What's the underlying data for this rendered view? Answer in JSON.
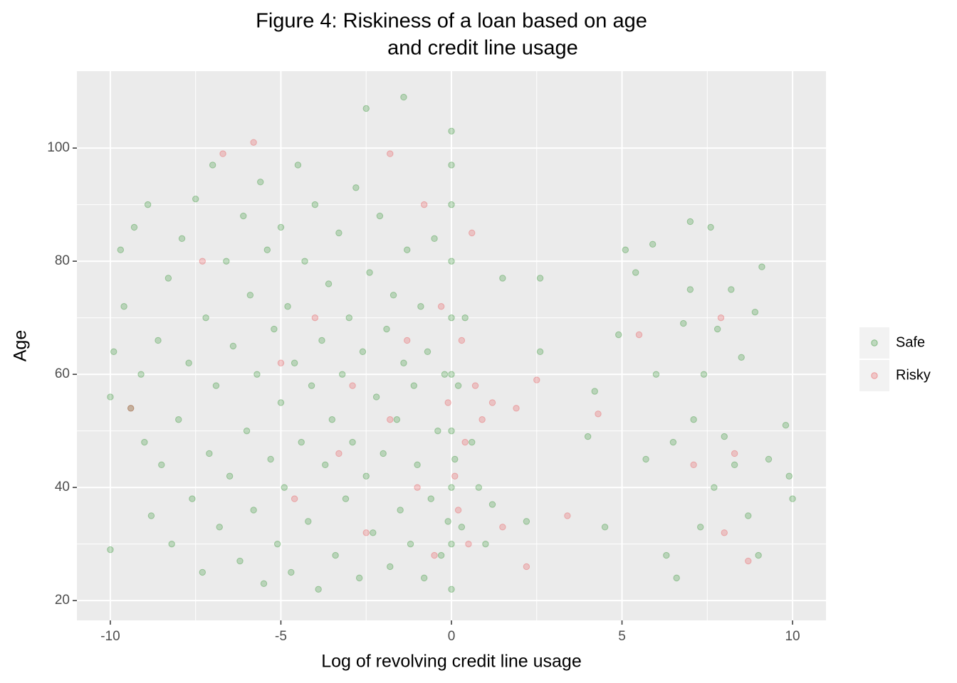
{
  "chart_data": {
    "type": "scatter",
    "title": [
      "Figure 4: Riskiness of a loan based on age",
      "and credit line usage"
    ],
    "x_label": "Log of revolving credit line usage",
    "y_label": "Age",
    "xlim": [
      -10.98,
      10.98
    ],
    "ylim": [
      16.5,
      113.6
    ],
    "xticks": [
      -10,
      -5,
      0,
      5,
      10
    ],
    "yticks": [
      20,
      40,
      60,
      80,
      100
    ],
    "x_minor_ticks": [
      -7.5,
      -2.5,
      2.5,
      7.5
    ],
    "y_minor_ticks": [
      30,
      50,
      70,
      90
    ],
    "grid": true,
    "legend_position": "right",
    "series": [
      {
        "name": "Safe",
        "color": "#228b22",
        "x": [
          -10,
          -10,
          -9.9,
          -9.7,
          -9.6,
          -9.4,
          -9.3,
          -9.1,
          -9,
          -8.9,
          -8.8,
          -8.6,
          -8.5,
          -8.3,
          -8.2,
          -8,
          -7.9,
          -7.7,
          -7.6,
          -7.5,
          -7.3,
          -7.2,
          -7.1,
          -7,
          -6.9,
          -6.8,
          -6.6,
          -6.5,
          -6.4,
          -6.2,
          -6.1,
          -6,
          -5.9,
          -5.8,
          -5.7,
          -5.6,
          -5.5,
          -5.4,
          -5.3,
          -5.2,
          -5.1,
          -5,
          -5,
          -4.9,
          -4.8,
          -4.7,
          -4.6,
          -4.5,
          -4.4,
          -4.3,
          -4.2,
          -4.1,
          -4,
          -3.9,
          -3.8,
          -3.7,
          -3.6,
          -3.5,
          -3.4,
          -3.3,
          -3.2,
          -3.1,
          -3,
          -2.9,
          -2.8,
          -2.7,
          -2.6,
          -2.5,
          -2.5,
          -2.4,
          -2.3,
          -2.2,
          -2.1,
          -2,
          -1.9,
          -1.8,
          -1.7,
          -1.6,
          -1.5,
          -1.4,
          -1.4,
          -1.3,
          -1.2,
          -1.1,
          -1,
          -0.9,
          -0.8,
          -0.7,
          -0.6,
          -0.5,
          -0.4,
          -0.3,
          -0.2,
          -0.1,
          0,
          0,
          0,
          0,
          0,
          0,
          0,
          0,
          0,
          0,
          0.1,
          0.2,
          0.3,
          0.4,
          0.6,
          0.8,
          1,
          1.2,
          1.5,
          2.2,
          2.6,
          2.6,
          4,
          4.2,
          4.5,
          4.9,
          5.1,
          5.4,
          5.7,
          5.9,
          6,
          6.3,
          6.5,
          6.6,
          6.8,
          7,
          7,
          7.1,
          7.3,
          7.4,
          7.6,
          7.7,
          7.8,
          8,
          8.2,
          8.3,
          8.5,
          8.7,
          8.9,
          9,
          9.1,
          9.3,
          9.8,
          9.9,
          10
        ],
        "values": [
          56,
          29,
          64,
          82,
          72,
          54,
          86,
          60,
          48,
          90,
          35,
          66,
          44,
          77,
          30,
          52,
          84,
          62,
          38,
          91,
          25,
          70,
          46,
          97,
          58,
          33,
          80,
          42,
          65,
          27,
          88,
          50,
          74,
          36,
          60,
          94,
          23,
          82,
          45,
          68,
          30,
          55,
          86,
          40,
          72,
          25,
          62,
          97,
          48,
          80,
          34,
          58,
          90,
          22,
          66,
          44,
          76,
          52,
          28,
          85,
          60,
          38,
          70,
          48,
          93,
          24,
          64,
          107,
          42,
          78,
          32,
          56,
          88,
          46,
          68,
          26,
          74,
          52,
          36,
          109,
          62,
          82,
          30,
          58,
          44,
          72,
          24,
          64,
          38,
          84,
          50,
          28,
          60,
          34,
          22,
          30,
          40,
          50,
          60,
          70,
          80,
          90,
          97,
          103,
          45,
          58,
          33,
          70,
          48,
          40,
          30,
          37,
          77,
          34,
          77,
          64,
          49,
          57,
          33,
          67,
          82,
          78,
          45,
          83,
          60,
          28,
          48,
          24,
          69,
          75,
          87,
          52,
          33,
          60,
          86,
          40,
          68,
          49,
          75,
          44,
          63,
          35,
          71,
          28,
          79,
          45,
          51,
          42,
          38
        ]
      },
      {
        "name": "Risky",
        "color": "#e8474a",
        "x": [
          -9.4,
          -7.3,
          -6.7,
          -5.8,
          -5,
          -4.6,
          -4,
          -3.3,
          -2.9,
          -2.5,
          -1.8,
          -1.8,
          -1.3,
          -1,
          -0.8,
          -0.5,
          -0.3,
          -0.1,
          0.1,
          0.2,
          0.3,
          0.4,
          0.5,
          0.6,
          0.7,
          0.9,
          1.2,
          1.5,
          1.9,
          2.2,
          2.5,
          3.4,
          4.3,
          5.5,
          7.1,
          7.9,
          8,
          8.3,
          8.7
        ],
        "values": [
          54,
          80,
          99,
          101,
          62,
          38,
          70,
          46,
          58,
          32,
          99,
          52,
          66,
          40,
          90,
          28,
          72,
          55,
          42,
          36,
          66,
          48,
          30,
          85,
          58,
          52,
          55,
          33,
          54,
          26,
          59,
          35,
          53,
          67,
          44,
          70,
          32,
          46,
          27
        ]
      }
    ]
  }
}
